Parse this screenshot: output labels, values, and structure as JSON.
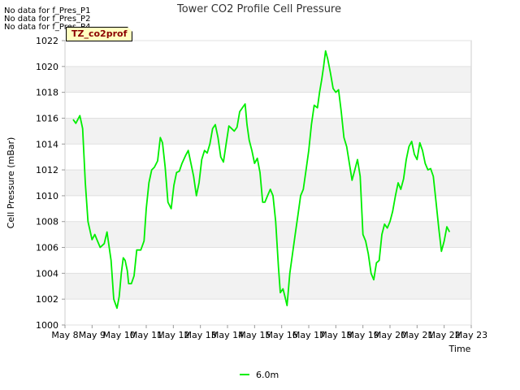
{
  "notices": [
    "No data for f_Pres_P1",
    "No data for f_Pres_P2",
    "No data for f_Pres_P4"
  ],
  "badge": "TZ_co2prof",
  "chart_data": {
    "type": "line",
    "title": "Tower CO2 Profile Cell Pressure",
    "xlabel": "Time",
    "ylabel": "Cell Pressure (mBar)",
    "ylim": [
      1000,
      1022
    ],
    "yticks": [
      1000,
      1002,
      1004,
      1006,
      1008,
      1010,
      1012,
      1014,
      1016,
      1018,
      1020,
      1022
    ],
    "xlim": [
      8,
      23
    ],
    "xticks": [
      {
        "v": 8,
        "label": "May 8"
      },
      {
        "v": 9,
        "label": "May 9"
      },
      {
        "v": 10,
        "label": "May 10"
      },
      {
        "v": 11,
        "label": "May 11"
      },
      {
        "v": 12,
        "label": "May 12"
      },
      {
        "v": 13,
        "label": "May 13"
      },
      {
        "v": 14,
        "label": "May 14"
      },
      {
        "v": 15,
        "label": "May 15"
      },
      {
        "v": 16,
        "label": "May 16"
      },
      {
        "v": 17,
        "label": "May 17"
      },
      {
        "v": 18,
        "label": "May 18"
      },
      {
        "v": 19,
        "label": "May 19"
      },
      {
        "v": 20,
        "label": "May 20"
      },
      {
        "v": 21,
        "label": "May 21"
      },
      {
        "v": 22,
        "label": "May 22"
      },
      {
        "v": 23,
        "label": "May 23"
      }
    ],
    "legend": "bottom-center",
    "series": [
      {
        "name": "6.0m",
        "color": "#00ee00",
        "x": [
          8.3,
          8.4,
          8.55,
          8.65,
          8.75,
          8.85,
          9.0,
          9.1,
          9.2,
          9.3,
          9.45,
          9.55,
          9.7,
          9.8,
          9.92,
          10.0,
          10.08,
          10.15,
          10.22,
          10.3,
          10.35,
          10.45,
          10.55,
          10.65,
          10.72,
          10.8,
          10.92,
          11.0,
          11.1,
          11.2,
          11.3,
          11.42,
          11.52,
          11.6,
          11.7,
          11.8,
          11.92,
          12.02,
          12.12,
          12.22,
          12.32,
          12.45,
          12.55,
          12.65,
          12.75,
          12.85,
          12.95,
          13.05,
          13.15,
          13.25,
          13.35,
          13.45,
          13.55,
          13.65,
          13.75,
          13.85,
          13.95,
          14.05,
          14.15,
          14.25,
          14.35,
          14.45,
          14.55,
          14.65,
          14.72,
          14.8,
          14.9,
          15.0,
          15.1,
          15.2,
          15.3,
          15.38,
          15.48,
          15.58,
          15.68,
          15.78,
          15.88,
          15.95,
          16.05,
          16.12,
          16.2,
          16.3,
          16.4,
          16.5,
          16.6,
          16.7,
          16.8,
          16.9,
          17.0,
          17.1,
          17.2,
          17.32,
          17.4,
          17.48,
          17.55,
          17.62,
          17.7,
          17.8,
          17.9,
          18.0,
          18.1,
          18.2,
          18.3,
          18.4,
          18.5,
          18.6,
          18.7,
          18.8,
          18.9,
          19.0,
          19.1,
          19.2,
          19.3,
          19.4,
          19.5,
          19.6,
          19.7,
          19.8,
          19.9,
          20.0,
          20.1,
          20.2,
          20.3,
          20.4,
          20.5,
          20.6,
          20.7,
          20.8,
          20.9,
          21.0,
          21.1,
          21.2,
          21.3,
          21.4,
          21.5,
          21.6,
          21.7,
          21.8,
          21.9,
          22.0,
          22.1,
          22.2
        ],
        "values": [
          1015.9,
          1015.6,
          1016.2,
          1015.2,
          1011.0,
          1008.0,
          1006.6,
          1007.0,
          1006.5,
          1006.0,
          1006.3,
          1007.2,
          1005.0,
          1002.0,
          1001.3,
          1002.2,
          1004.0,
          1005.2,
          1005.0,
          1004.2,
          1003.2,
          1003.2,
          1003.8,
          1005.8,
          1005.8,
          1005.8,
          1006.5,
          1009.0,
          1011.0,
          1012.0,
          1012.2,
          1012.7,
          1014.5,
          1014.1,
          1012.2,
          1009.5,
          1009.0,
          1010.8,
          1011.8,
          1011.9,
          1012.5,
          1013.1,
          1013.5,
          1012.5,
          1011.5,
          1010.0,
          1011.0,
          1012.8,
          1013.5,
          1013.3,
          1014.0,
          1015.2,
          1015.5,
          1014.5,
          1013.0,
          1012.6,
          1014.0,
          1015.4,
          1015.2,
          1015.0,
          1015.3,
          1016.5,
          1016.8,
          1017.1,
          1015.5,
          1014.3,
          1013.5,
          1012.5,
          1012.9,
          1011.8,
          1009.5,
          1009.5,
          1010.0,
          1010.5,
          1010.0,
          1008.0,
          1004.5,
          1002.5,
          1002.8,
          1002.2,
          1001.5,
          1004.0,
          1005.5,
          1007.0,
          1008.5,
          1010.0,
          1010.5,
          1012.0,
          1013.5,
          1015.5,
          1017.0,
          1016.8,
          1018.0,
          1019.0,
          1020.0,
          1021.2,
          1020.6,
          1019.5,
          1018.3,
          1018.0,
          1018.2,
          1016.5,
          1014.5,
          1013.8,
          1012.5,
          1011.2,
          1012.0,
          1012.8,
          1011.5,
          1007.0,
          1006.5,
          1005.5,
          1004.0,
          1003.5,
          1004.8,
          1005.0,
          1007.0,
          1007.8,
          1007.5,
          1008.0,
          1008.8,
          1010.0,
          1011.0,
          1010.5,
          1011.3,
          1012.8,
          1013.8,
          1014.2,
          1013.2,
          1012.8,
          1014.1,
          1013.5,
          1012.5,
          1012.0,
          1012.1,
          1011.5,
          1009.5,
          1007.5,
          1005.7,
          1006.5,
          1007.6,
          1007.2
        ]
      }
    ]
  }
}
